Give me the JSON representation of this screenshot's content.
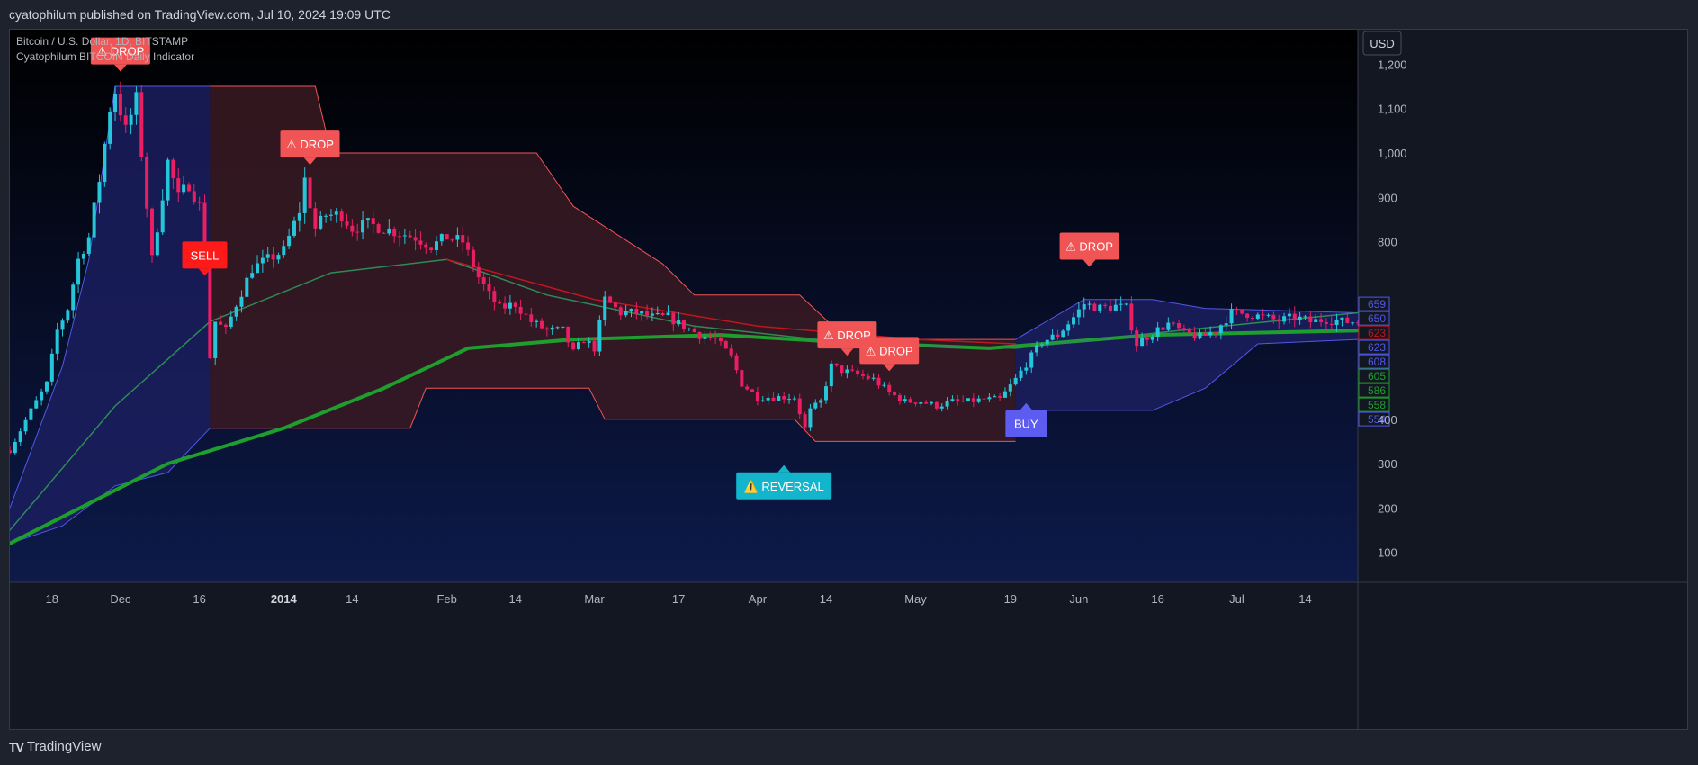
{
  "header": {
    "publish_text": "cyatophilum published on TradingView.com, Jul 10, 2024 19:09 UTC"
  },
  "footer": {
    "brand": "TradingView",
    "logo": "tradingview-logo-icon"
  },
  "legend": {
    "symbol": "Bitcoin / U.S. Dollar, 1D, BITSTAMP",
    "indicator": "Cyatophilum BITCOIN Daily Indicator"
  },
  "currency_button": "USD",
  "colors": {
    "background_top": "#000000",
    "background_bottom": "#0d1a4a",
    "bull_candle": "#26c6da",
    "bear_candle": "#e91e63",
    "red_cloud_fill": "#3a1a22",
    "red_cloud_line": "#f05454",
    "blue_cloud_fill": "#1b1f5e",
    "blue_cloud_line": "#5058e8",
    "ma_thick": "#1e9e2e",
    "ma_thin": "#2e8b57",
    "ma_red": "#c0161e",
    "drop_label": "#f05454",
    "sell_label": "#ff1a1a",
    "buy_label": "#5c5cf0",
    "reversal_label": "#12b5cc"
  },
  "chart_data": {
    "type": "candlestick",
    "title": "Bitcoin / U.S. Dollar, 1D, BITSTAMP",
    "ylabel": "USD",
    "ylim": [
      0,
      1300
    ],
    "x_range": [
      "2013-11-10",
      "2014-07-24"
    ],
    "x_ticks": [
      {
        "date": "2013-11-18",
        "label": "18"
      },
      {
        "date": "2013-12-01",
        "label": "Dec"
      },
      {
        "date": "2013-12-16",
        "label": "16"
      },
      {
        "date": "2014-01-01",
        "label": "2014",
        "bold": true
      },
      {
        "date": "2014-01-14",
        "label": "14"
      },
      {
        "date": "2014-02-01",
        "label": "Feb"
      },
      {
        "date": "2014-02-14",
        "label": "14"
      },
      {
        "date": "2014-03-01",
        "label": "Mar"
      },
      {
        "date": "2014-03-17",
        "label": "17"
      },
      {
        "date": "2014-04-01",
        "label": "Apr"
      },
      {
        "date": "2014-04-14",
        "label": "14"
      },
      {
        "date": "2014-05-01",
        "label": "May"
      },
      {
        "date": "2014-05-19",
        "label": "19"
      },
      {
        "date": "2014-06-01",
        "label": "Jun"
      },
      {
        "date": "2014-06-16",
        "label": "16"
      },
      {
        "date": "2014-07-01",
        "label": "Jul"
      },
      {
        "date": "2014-07-14",
        "label": "14"
      }
    ],
    "y_ticks": [
      {
        "value": 100,
        "label": "100"
      },
      {
        "value": 200,
        "label": "200"
      },
      {
        "value": 300,
        "label": "300"
      },
      {
        "value": 400,
        "label": "400"
      },
      {
        "value": 800,
        "label": "800"
      },
      {
        "value": 900,
        "label": "900"
      },
      {
        "value": 1000,
        "label": "1,000"
      },
      {
        "value": 1100,
        "label": "1,100"
      },
      {
        "value": 1200,
        "label": "1,200"
      }
    ],
    "price_path": [
      [
        "2013-11-10",
        330
      ],
      [
        "2013-11-14",
        420
      ],
      [
        "2013-11-17",
        480
      ],
      [
        "2013-11-19",
        600
      ],
      [
        "2013-11-21",
        650
      ],
      [
        "2013-11-23",
        760
      ],
      [
        "2013-11-25",
        810
      ],
      [
        "2013-11-27",
        940
      ],
      [
        "2013-11-29",
        1100
      ],
      [
        "2013-11-30",
        1140
      ],
      [
        "2013-12-02",
        1050
      ],
      [
        "2013-12-04",
        1120
      ],
      [
        "2013-12-06",
        880
      ],
      [
        "2013-12-07",
        760
      ],
      [
        "2013-12-10",
        980
      ],
      [
        "2013-12-12",
        900
      ],
      [
        "2013-12-14",
        930
      ],
      [
        "2013-12-16",
        880
      ],
      [
        "2013-12-17",
        760
      ],
      [
        "2013-12-18",
        540
      ],
      [
        "2013-12-19",
        620
      ],
      [
        "2013-12-21",
        600
      ],
      [
        "2013-12-23",
        660
      ],
      [
        "2013-12-26",
        740
      ],
      [
        "2013-12-29",
        760
      ],
      [
        "2014-01-01",
        780
      ],
      [
        "2014-01-04",
        870
      ],
      [
        "2014-01-05",
        940
      ],
      [
        "2014-01-07",
        830
      ],
      [
        "2014-01-09",
        860
      ],
      [
        "2014-01-12",
        860
      ],
      [
        "2014-01-14",
        830
      ],
      [
        "2014-01-17",
        840
      ],
      [
        "2014-01-20",
        830
      ],
      [
        "2014-01-23",
        820
      ],
      [
        "2014-01-26",
        810
      ],
      [
        "2014-01-29",
        790
      ],
      [
        "2014-02-01",
        810
      ],
      [
        "2014-02-04",
        800
      ],
      [
        "2014-02-07",
        720
      ],
      [
        "2014-02-09",
        680
      ],
      [
        "2014-02-11",
        650
      ],
      [
        "2014-02-14",
        660
      ],
      [
        "2014-02-17",
        620
      ],
      [
        "2014-02-20",
        600
      ],
      [
        "2014-02-23",
        600
      ],
      [
        "2014-02-25",
        550
      ],
      [
        "2014-02-27",
        580
      ],
      [
        "2014-03-01",
        560
      ],
      [
        "2014-03-03",
        670
      ],
      [
        "2014-03-06",
        640
      ],
      [
        "2014-03-09",
        640
      ],
      [
        "2014-03-12",
        630
      ],
      [
        "2014-03-15",
        630
      ],
      [
        "2014-03-18",
        610
      ],
      [
        "2014-03-21",
        590
      ],
      [
        "2014-03-24",
        580
      ],
      [
        "2014-03-27",
        540
      ],
      [
        "2014-03-29",
        480
      ],
      [
        "2014-04-01",
        450
      ],
      [
        "2014-04-03",
        450
      ],
      [
        "2014-04-06",
        450
      ],
      [
        "2014-04-08",
        450
      ],
      [
        "2014-04-10",
        380
      ],
      [
        "2014-04-11",
        420
      ],
      [
        "2014-04-13",
        440
      ],
      [
        "2014-04-15",
        520
      ],
      [
        "2014-04-17",
        510
      ],
      [
        "2014-04-20",
        500
      ],
      [
        "2014-04-23",
        490
      ],
      [
        "2014-04-26",
        460
      ],
      [
        "2014-04-29",
        440
      ],
      [
        "2014-05-02",
        440
      ],
      [
        "2014-05-05",
        430
      ],
      [
        "2014-05-08",
        440
      ],
      [
        "2014-05-11",
        440
      ],
      [
        "2014-05-14",
        445
      ],
      [
        "2014-05-17",
        445
      ],
      [
        "2014-05-20",
        490
      ],
      [
        "2014-05-22",
        525
      ],
      [
        "2014-05-25",
        575
      ],
      [
        "2014-05-28",
        590
      ],
      [
        "2014-05-31",
        630
      ],
      [
        "2014-06-02",
        660
      ],
      [
        "2014-06-05",
        650
      ],
      [
        "2014-06-08",
        655
      ],
      [
        "2014-06-10",
        650
      ],
      [
        "2014-06-12",
        570
      ],
      [
        "2014-06-15",
        595
      ],
      [
        "2014-06-18",
        615
      ],
      [
        "2014-06-21",
        595
      ],
      [
        "2014-06-24",
        585
      ],
      [
        "2014-06-27",
        600
      ],
      [
        "2014-06-30",
        640
      ],
      [
        "2014-07-03",
        638
      ],
      [
        "2014-07-06",
        630
      ],
      [
        "2014-07-09",
        622
      ],
      [
        "2014-07-12",
        630
      ],
      [
        "2014-07-15",
        620
      ],
      [
        "2014-07-18",
        625
      ],
      [
        "2014-07-21",
        620
      ],
      [
        "2014-07-24",
        620
      ]
    ],
    "clouds": [
      {
        "color": "blue",
        "start": "2013-11-10",
        "end": "2013-12-18",
        "upper": [
          [
            "2013-11-10",
            200
          ],
          [
            "2013-11-20",
            520
          ],
          [
            "2013-11-25",
            760
          ],
          [
            "2013-11-30",
            1150
          ],
          [
            "2013-12-18",
            1150
          ]
        ],
        "lower": [
          [
            "2013-11-10",
            120
          ],
          [
            "2013-11-20",
            160
          ],
          [
            "2013-11-30",
            250
          ],
          [
            "2013-12-10",
            280
          ],
          [
            "2013-12-18",
            380
          ]
        ]
      },
      {
        "color": "red",
        "start": "2013-12-18",
        "end": "2014-05-20",
        "upper": [
          [
            "2013-12-18",
            1150
          ],
          [
            "2014-01-07",
            1150
          ],
          [
            "2014-01-10",
            1000
          ],
          [
            "2014-02-18",
            1000
          ],
          [
            "2014-02-25",
            880
          ],
          [
            "2014-03-14",
            750
          ],
          [
            "2014-03-20",
            680
          ],
          [
            "2014-04-09",
            680
          ],
          [
            "2014-04-18",
            580
          ],
          [
            "2014-05-20",
            580
          ]
        ],
        "lower": [
          [
            "2013-12-18",
            380
          ],
          [
            "2014-01-25",
            380
          ],
          [
            "2014-01-28",
            470
          ],
          [
            "2014-02-28",
            470
          ],
          [
            "2014-03-03",
            400
          ],
          [
            "2014-04-08",
            400
          ],
          [
            "2014-04-12",
            350
          ],
          [
            "2014-05-20",
            350
          ]
        ]
      },
      {
        "color": "blue",
        "start": "2014-05-20",
        "end": "2014-07-24",
        "upper": [
          [
            "2014-05-20",
            580
          ],
          [
            "2014-06-02",
            670
          ],
          [
            "2014-06-15",
            670
          ],
          [
            "2014-06-25",
            650
          ],
          [
            "2014-07-24",
            640
          ]
        ],
        "lower": [
          [
            "2014-05-20",
            420
          ],
          [
            "2014-06-15",
            420
          ],
          [
            "2014-06-25",
            470
          ],
          [
            "2014-07-05",
            570
          ],
          [
            "2014-07-24",
            580
          ]
        ]
      }
    ],
    "moving_averages": [
      {
        "color": "#1e9e2e",
        "width": 4,
        "points": [
          [
            "2013-11-10",
            120
          ],
          [
            "2013-12-10",
            300
          ],
          [
            "2014-01-01",
            380
          ],
          [
            "2014-01-20",
            470
          ],
          [
            "2014-02-05",
            560
          ],
          [
            "2014-02-25",
            580
          ],
          [
            "2014-03-25",
            590
          ],
          [
            "2014-04-15",
            575
          ],
          [
            "2014-05-15",
            560
          ],
          [
            "2014-06-15",
            590
          ],
          [
            "2014-07-24",
            600
          ]
        ]
      },
      {
        "color": "#2e8b57",
        "width": 1.5,
        "points": [
          [
            "2013-11-10",
            150
          ],
          [
            "2013-11-30",
            430
          ],
          [
            "2013-12-18",
            620
          ],
          [
            "2014-01-10",
            730
          ],
          [
            "2014-02-01",
            760
          ],
          [
            "2014-02-20",
            680
          ],
          [
            "2014-03-20",
            610
          ],
          [
            "2014-04-20",
            570
          ],
          [
            "2014-05-20",
            560
          ],
          [
            "2014-06-20",
            600
          ],
          [
            "2014-07-24",
            640
          ]
        ]
      },
      {
        "color": "#c0161e",
        "width": 1.5,
        "points": [
          [
            "2014-02-01",
            760
          ],
          [
            "2014-03-01",
            670
          ],
          [
            "2014-04-01",
            610
          ],
          [
            "2014-05-01",
            580
          ],
          [
            "2014-05-20",
            570
          ]
        ]
      }
    ],
    "signals": [
      {
        "text": "⚠ DROP",
        "date": "2013-12-01",
        "value": 1230,
        "color": "#f05454",
        "pointer": "down"
      },
      {
        "text": "SELL",
        "date": "2013-12-17",
        "value": 770,
        "color": "#ff1a1a",
        "pointer": "down"
      },
      {
        "text": "⚠ DROP",
        "date": "2014-01-06",
        "value": 1020,
        "color": "#f05454",
        "pointer": "down"
      },
      {
        "text": "⚠️ REVERSAL",
        "date": "2014-04-06",
        "value": 250,
        "color": "#12b5cc",
        "pointer": "up"
      },
      {
        "text": "⚠ DROP",
        "date": "2014-04-18",
        "value": 590,
        "color": "#f05454",
        "pointer": "down"
      },
      {
        "text": "⚠ DROP",
        "date": "2014-04-26",
        "value": 555,
        "color": "#f05454",
        "pointer": "down"
      },
      {
        "text": "BUY",
        "date": "2014-05-22",
        "value": 390,
        "color": "#5c5cf0",
        "pointer": "up"
      },
      {
        "text": "⚠ DROP",
        "date": "2014-06-03",
        "value": 790,
        "color": "#f05454",
        "pointer": "down"
      }
    ],
    "price_badges": [
      {
        "label": "659",
        "value": 659,
        "color": "#5058e8"
      },
      {
        "label": "650",
        "value": 650,
        "color": "#5058e8"
      },
      {
        "label": "623",
        "value": 623,
        "color": "#c0161e"
      },
      {
        "label": "623",
        "value": 623,
        "color": "#5058e8"
      },
      {
        "label": "608",
        "value": 608,
        "color": "#5058e8"
      },
      {
        "label": "605",
        "value": 605,
        "color": "#1e9e2e"
      },
      {
        "label": "586",
        "value": 586,
        "color": "#1e9e2e"
      },
      {
        "label": "558",
        "value": 558,
        "color": "#1e9e2e"
      },
      {
        "label": "554",
        "value": 554,
        "color": "#5058e8"
      }
    ]
  }
}
